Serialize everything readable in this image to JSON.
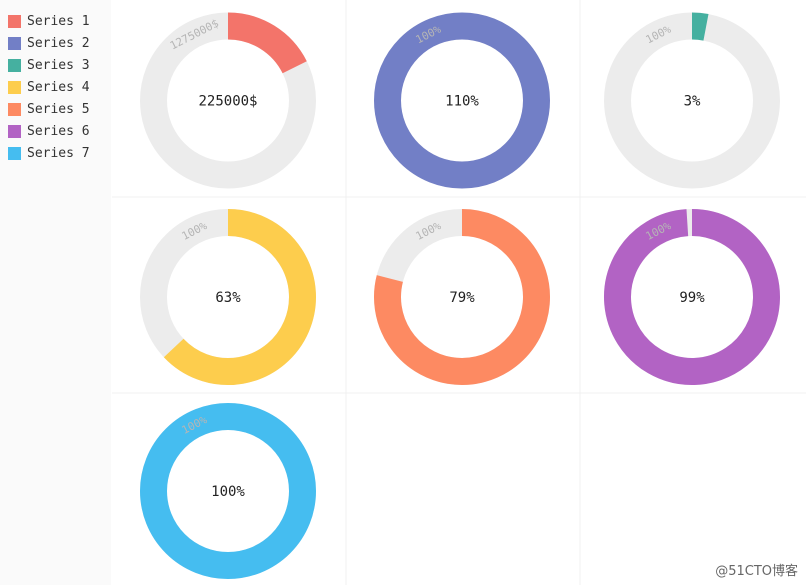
{
  "chart_data": {
    "type": "gauge-donut",
    "legend": {
      "placement": "left"
    },
    "grid": true,
    "series": [
      {
        "name": "Series 1",
        "color": "#f3746a",
        "value": 225000,
        "max": 1275000,
        "center_label": "225000$",
        "max_label": "1275000$"
      },
      {
        "name": "Series 2",
        "color": "#727fc6",
        "value": 110,
        "max": 100,
        "center_label": "110%",
        "max_label": "100%"
      },
      {
        "name": "Series 3",
        "color": "#45b0a0",
        "value": 3,
        "max": 100,
        "center_label": "3%",
        "max_label": "100%"
      },
      {
        "name": "Series 4",
        "color": "#fdcd4d",
        "value": 63,
        "max": 100,
        "center_label": "63%",
        "max_label": "100%"
      },
      {
        "name": "Series 5",
        "color": "#fd8a62",
        "value": 79,
        "max": 100,
        "center_label": "79%",
        "max_label": "100%"
      },
      {
        "name": "Series 6",
        "color": "#b263c4",
        "value": 99,
        "max": 100,
        "center_label": "99%",
        "max_label": "100%"
      },
      {
        "name": "Series 7",
        "color": "#45bdf0",
        "value": 100,
        "max": 100,
        "center_label": "100%",
        "max_label": "100%"
      }
    ]
  },
  "watermark": "@51CTO博客"
}
